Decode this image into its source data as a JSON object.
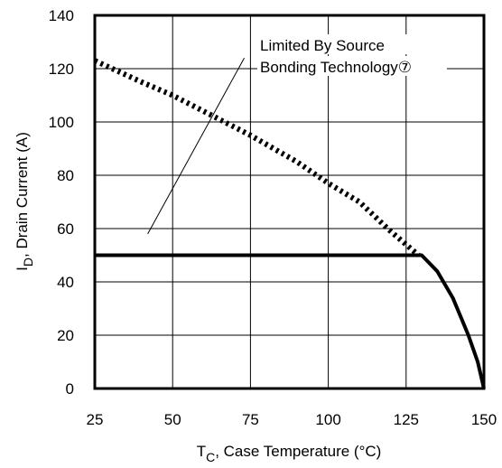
{
  "chart_data": {
    "type": "line",
    "title": "",
    "xlabel": {
      "main": "T",
      "sub": "C",
      "rest": ",  Case Temperature (°C)"
    },
    "ylabel": {
      "main": "I",
      "sub": "D",
      "rest": ",  Drain Current (A)"
    },
    "xlim": [
      25,
      150
    ],
    "ylim": [
      0,
      140
    ],
    "x_ticks": [
      25,
      50,
      75,
      100,
      125,
      150
    ],
    "y_ticks": [
      0,
      20,
      40,
      60,
      80,
      100,
      120,
      140
    ],
    "grid": true,
    "series": [
      {
        "style": "dotted",
        "x": [
          25,
          40,
          50,
          60,
          75,
          90,
          100,
          110,
          120,
          125,
          129
        ],
        "y": [
          123,
          115,
          110,
          104,
          95,
          85,
          77,
          70,
          59,
          54,
          50
        ]
      },
      {
        "style": "solid",
        "x": [
          25,
          129,
          130,
          135,
          140,
          145,
          148,
          150
        ],
        "y": [
          50,
          50,
          50,
          44,
          34,
          20,
          10,
          0
        ]
      }
    ],
    "annotations": [
      {
        "lines": [
          "Limited By Source",
          "Bonding Technology⑦"
        ],
        "from": [
          42,
          58
        ],
        "to": [
          73,
          124
        ]
      }
    ]
  }
}
